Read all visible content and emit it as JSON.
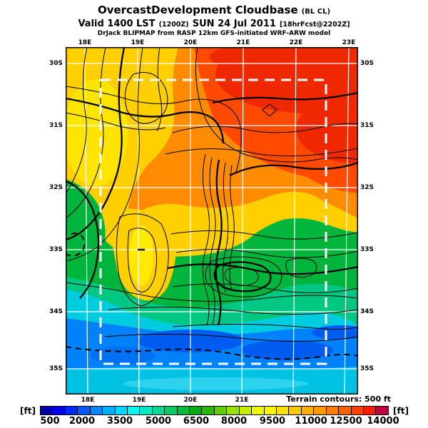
{
  "header": {
    "title": "OvercastDevelopment Cloudbase",
    "title_suffix": "(BL CL)",
    "valid_prefix": "Valid 1400 LST",
    "valid_init": "(1200Z)",
    "valid_date": "SUN 24 Jul 2011",
    "valid_fcst": "[18hrFcst@2202Z]",
    "model_line": "DrJack BLIPMAP from RASP 12km GFS-initiated WRF-ARW model"
  },
  "map": {
    "top_labels": [
      "18E",
      "19E",
      "20E",
      "21E",
      "22E",
      "23E"
    ],
    "bottom_labels": [
      "18E",
      "19E",
      "20E",
      "21E"
    ],
    "left_labels": [
      "30S",
      "31S",
      "32S",
      "33S",
      "34S",
      "35S"
    ],
    "right_labels": [
      "30S",
      "31S",
      "32S",
      "33S",
      "34S",
      "35S"
    ],
    "terrain_note": "Terrain contours: 500 ft"
  },
  "colorbar": {
    "unit_left": "[ft]",
    "unit_right": "[ft]",
    "tick_labels": [
      "500",
      "2000",
      "3500",
      "5000",
      "6500",
      "8000",
      "9500",
      "11000",
      "12500",
      "14000"
    ],
    "segment_colors": [
      "#0000A8",
      "#0000E8",
      "#0028FF",
      "#0058FF",
      "#0088FF",
      "#00B0FF",
      "#00D8FF",
      "#00F8F8",
      "#00ECC4",
      "#00DC94",
      "#00CC64",
      "#00BC38",
      "#00AC10",
      "#28B800",
      "#60CC00",
      "#98E000",
      "#C8EE00",
      "#ECFA00",
      "#FFF400",
      "#FFE000",
      "#FFC800",
      "#FFB000",
      "#FF9800",
      "#FF7C00",
      "#FF6000",
      "#FF4000",
      "#FF1C00",
      "#C4003C"
    ]
  },
  "colors": {
    "contour_line": "#000000",
    "graticule": "#ffffff",
    "domain_box": "#ffffff",
    "frame": "#000000"
  }
}
